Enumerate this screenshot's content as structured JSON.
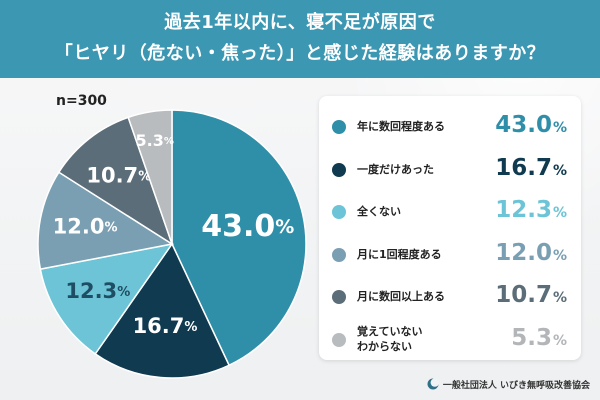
{
  "title": {
    "line1": "過去1年以内に、寝不足が原因で",
    "line2": "「ヒヤリ（危ない・焦った）」と感じた経験はありますか？"
  },
  "sample_size": "n=300",
  "footer": {
    "organization": "一般社団法人 いびき無呼吸改善協会",
    "logo_icon": "moon-icon"
  },
  "colors": {
    "title_band": "#3c97b3",
    "label_dark_text": "#ffffff"
  },
  "chart_data": {
    "type": "pie",
    "start": "12 o'clock",
    "direction": "clockwise",
    "legend_placement": "right",
    "slices": [
      {
        "name": "年に数回程度ある",
        "value": 43.0,
        "label": "43.0%",
        "color": "#2f8ea8"
      },
      {
        "name": "一度だけあった",
        "value": 16.7,
        "label": "16.7%",
        "color": "#0f3a4f"
      },
      {
        "name": "全くない",
        "value": 12.3,
        "label": "12.3%",
        "color": "#6cc4d6"
      },
      {
        "name": "月に1回程度ある",
        "value": 12.0,
        "label": "12.0%",
        "color": "#7a9fb3"
      },
      {
        "name": "月に数回以上ある",
        "value": 10.7,
        "label": "10.7%",
        "color": "#5b6d78"
      },
      {
        "name": "覚えていない\nわからない",
        "value": 5.3,
        "label": "5.3%",
        "color": "#b9bcbf"
      }
    ]
  }
}
